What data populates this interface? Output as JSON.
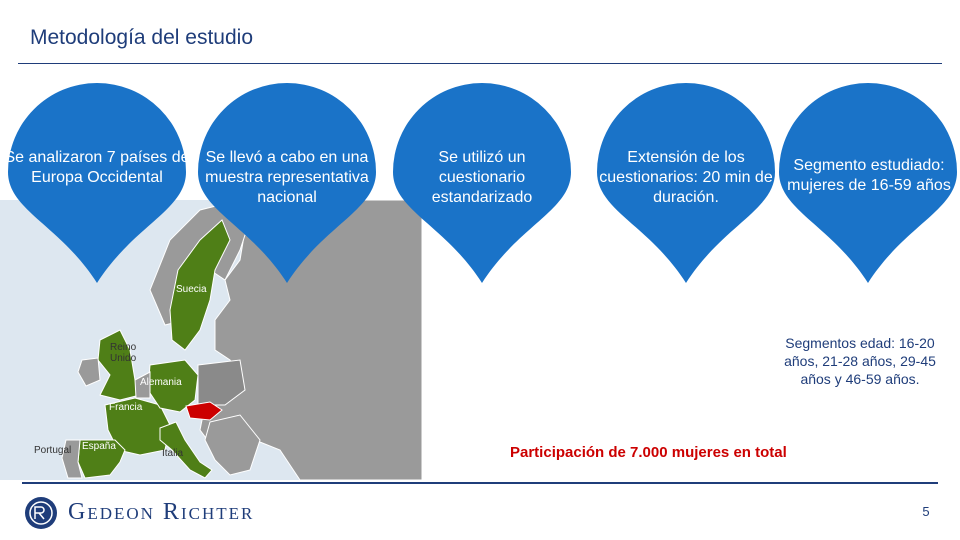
{
  "header": {
    "title": "Metodología del estudio"
  },
  "pins": [
    {
      "text": "Se analizaron 7 países de Europa Occidental"
    },
    {
      "text": "Se llevó a cabo en una muestra representativa nacional"
    },
    {
      "text": "Se utilizó un cuestionario estandarizado"
    },
    {
      "text": "Extensión de los cuestionarios: 20 min de duración."
    },
    {
      "text": "Segmento estudiado: mujeres de 16-59 años"
    }
  ],
  "map_labels": {
    "suecia": "Suecia",
    "reino_unido": "Reino Unido",
    "alemania": "Alemania",
    "francia": "Francia",
    "portugal": "Portugal",
    "espana": "España",
    "italia": "Italia"
  },
  "segments_text": "Segmentos edad: 16-20 años, 21-28 años, 29-45 años y 46-59 años.",
  "participation_text": "Participación de 7.000 mujeres en total",
  "footer": {
    "brand": "Gedeon Richter",
    "page_number": "5"
  },
  "colors": {
    "pin": "#1a73c8",
    "map_highlight": "#4f7f17",
    "map_base": "#9a9a9a",
    "accent_red": "#cc0000",
    "brand_blue": "#1f3d7a"
  }
}
